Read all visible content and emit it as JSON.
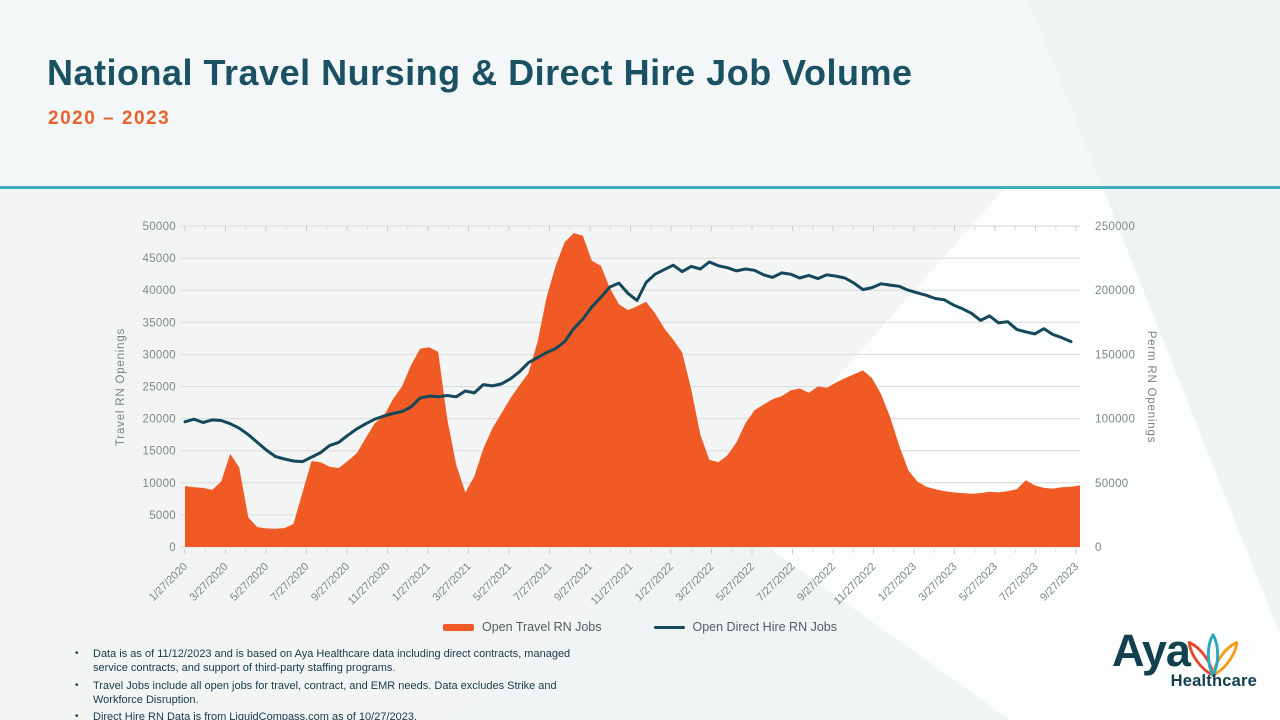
{
  "slide": {
    "title": "National Travel Nursing & Direct Hire Job Volume",
    "subtitle": "2020 – 2023"
  },
  "colors": {
    "title_teal": "#1a5163",
    "subtitle_orange": "#e8622c",
    "divider_teal": "#3aaebc",
    "travel_orange": "#ef5a25",
    "direct_hire_teal": "#15485a",
    "gridline": "#d9dcdc",
    "tick_mark": "#c9cdcd",
    "axis_text": "#7f8587"
  },
  "legend": {
    "travel_label": "Open Travel RN Jobs",
    "direct_hire_label": "Open Direct Hire RN Jobs"
  },
  "footnotes": [
    "Data is as of 11/12/2023 and is based on Aya Healthcare data including direct contracts, managed service contracts, and support of third-party staffing programs.",
    "Travel Jobs include all open jobs for travel, contract, and EMR needs. Data excludes Strike and Workforce Disruption.",
    "Direct Hire RN Data is from LiquidCompass.com as of 10/27/2023."
  ],
  "logo": {
    "brand": "Aya",
    "sub": "Healthcare"
  },
  "chart_data": {
    "type": "area+line",
    "title": "National Travel Nursing & Direct Hire Job Volume 2020 – 2023",
    "grid": true,
    "legend_position": "bottom",
    "x_tick_labels": [
      "1/27/2020",
      "3/27/2020",
      "5/27/2020",
      "7/27/2020",
      "9/27/2020",
      "11/27/2020",
      "1/27/2021",
      "3/27/2021",
      "5/27/2021",
      "7/27/2021",
      "9/27/2021",
      "11/27/2021",
      "1/27/2022",
      "3/27/2022",
      "5/27/2022",
      "7/27/2022",
      "9/27/2022",
      "11/27/2022",
      "1/27/2023",
      "3/27/2023",
      "5/27/2023",
      "7/27/2023",
      "9/27/2023"
    ],
    "left_axis": {
      "title": "Travel RN Openings",
      "min": 0,
      "max": 50000,
      "ticks": [
        0,
        5000,
        10000,
        15000,
        20000,
        25000,
        30000,
        35000,
        40000,
        45000,
        50000
      ]
    },
    "right_axis": {
      "title": "Perm RN Openings",
      "min": 0,
      "max": 250000,
      "ticks": [
        0,
        50000,
        100000,
        150000,
        200000,
        250000
      ]
    },
    "series": [
      {
        "name": "Open Travel RN Jobs",
        "type": "area",
        "axis": "left",
        "color": "#ef5a25",
        "values": [
          9500,
          9300,
          9200,
          8900,
          10200,
          14500,
          12400,
          4600,
          3100,
          2900,
          2850,
          2950,
          3600,
          8500,
          13400,
          13200,
          12500,
          12300,
          13400,
          14600,
          17000,
          19300,
          20400,
          23000,
          25000,
          28300,
          30900,
          31100,
          30400,
          20000,
          12800,
          8500,
          11000,
          15300,
          18500,
          20800,
          23200,
          25200,
          27100,
          32000,
          38900,
          43800,
          47500,
          48900,
          48500,
          44600,
          43800,
          40300,
          37800,
          36900,
          37500,
          38200,
          36400,
          34100,
          32300,
          30300,
          24500,
          17500,
          13600,
          13200,
          14300,
          16300,
          19300,
          21300,
          22200,
          23000,
          23500,
          24400,
          24700,
          24000,
          25000,
          24800,
          25600,
          26300,
          26900,
          27500,
          26300,
          23800,
          20200,
          15800,
          12000,
          10200,
          9400,
          9000,
          8700,
          8500,
          8400,
          8300,
          8400,
          8600,
          8500,
          8700,
          9000,
          10400,
          9600,
          9200,
          9100,
          9300,
          9400,
          9600
        ]
      },
      {
        "name": "Open Direct Hire RN Jobs",
        "type": "line",
        "axis": "right",
        "color": "#15485a",
        "values": [
          97500,
          99500,
          97000,
          99000,
          98500,
          96000,
          92500,
          87500,
          81500,
          75500,
          70500,
          68500,
          67000,
          66500,
          70000,
          73500,
          79000,
          81500,
          87000,
          92000,
          96000,
          99500,
          102000,
          104000,
          105500,
          109000,
          116000,
          117500,
          117000,
          118000,
          117000,
          121500,
          120000,
          126500,
          125500,
          127000,
          131000,
          136500,
          143500,
          147500,
          151500,
          154500,
          160000,
          170000,
          177500,
          187000,
          194500,
          202500,
          205500,
          197500,
          192000,
          206000,
          212500,
          216000,
          219500,
          214500,
          218500,
          216500,
          222000,
          219000,
          217500,
          215000,
          216500,
          215500,
          212000,
          210000,
          213500,
          212500,
          209500,
          211500,
          209000,
          212000,
          211000,
          209500,
          205500,
          200500,
          202000,
          205000,
          204000,
          203000,
          200000,
          198000,
          196000,
          193500,
          192500,
          188500,
          185500,
          182000,
          176500,
          180000,
          174500,
          175500,
          169500,
          167500,
          166000,
          170000,
          165500,
          163000,
          160000
        ]
      }
    ]
  }
}
